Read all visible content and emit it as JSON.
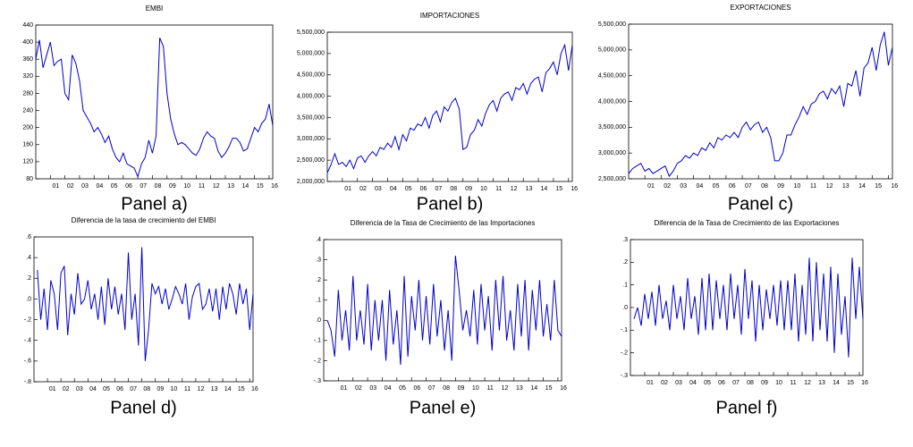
{
  "chart_data": [
    {
      "type": "line",
      "title": "EMBI",
      "caption": "Panel a)",
      "color": "#0000cc",
      "categories": [
        null,
        null,
        null,
        null,
        "01",
        null,
        null,
        null,
        "02",
        null,
        null,
        null,
        "03",
        null,
        null,
        null,
        "04",
        null,
        null,
        null,
        "05",
        null,
        null,
        null,
        "06",
        null,
        null,
        null,
        "07",
        null,
        null,
        null,
        "08",
        null,
        null,
        null,
        "09",
        null,
        null,
        null,
        "10",
        null,
        null,
        null,
        "11",
        null,
        null,
        null,
        "12",
        null,
        null,
        null,
        "13",
        null,
        null,
        null,
        "14",
        null,
        null,
        null,
        "15",
        null,
        null,
        null,
        "16",
        null
      ],
      "values": [
        360,
        405,
        340,
        370,
        400,
        345,
        355,
        360,
        280,
        265,
        370,
        350,
        310,
        240,
        225,
        210,
        190,
        200,
        185,
        165,
        180,
        150,
        130,
        120,
        140,
        115,
        110,
        105,
        85,
        115,
        130,
        170,
        140,
        180,
        410,
        390,
        280,
        220,
        185,
        160,
        165,
        160,
        150,
        140,
        135,
        150,
        175,
        190,
        180,
        175,
        145,
        130,
        140,
        155,
        175,
        175,
        165,
        145,
        150,
        175,
        200,
        190,
        210,
        220,
        255,
        205
      ],
      "ylim": [
        80,
        440
      ],
      "yticks": [
        80,
        120,
        160,
        200,
        240,
        280,
        320,
        360,
        400,
        440
      ]
    },
    {
      "type": "line",
      "title": "IMPORTACIONES",
      "caption": "Panel b)",
      "color": "#0000cc",
      "categories": [
        null,
        null,
        null,
        null,
        "01",
        null,
        null,
        null,
        "02",
        null,
        null,
        null,
        "03",
        null,
        null,
        null,
        "04",
        null,
        null,
        null,
        "05",
        null,
        null,
        null,
        "06",
        null,
        null,
        null,
        "07",
        null,
        null,
        null,
        "08",
        null,
        null,
        null,
        "09",
        null,
        null,
        null,
        "10",
        null,
        null,
        null,
        "11",
        null,
        null,
        null,
        "12",
        null,
        null,
        null,
        "13",
        null,
        null,
        null,
        "14",
        null,
        null,
        null,
        "15",
        null,
        null,
        null,
        "16",
        null
      ],
      "values": [
        2200000,
        2400000,
        2650000,
        2400000,
        2450000,
        2350000,
        2500000,
        2300000,
        2550000,
        2600000,
        2450000,
        2600000,
        2700000,
        2600000,
        2800000,
        2750000,
        2900000,
        2800000,
        3050000,
        2750000,
        3100000,
        2950000,
        3250000,
        3200000,
        3350000,
        3300000,
        3500000,
        3250000,
        3550000,
        3650000,
        3400000,
        3750000,
        3650000,
        3850000,
        3950000,
        3700000,
        2750000,
        2800000,
        3100000,
        3200000,
        3450000,
        3300000,
        3600000,
        3800000,
        3900000,
        3650000,
        3950000,
        4050000,
        4100000,
        3900000,
        4200000,
        4150000,
        4300000,
        4050000,
        4300000,
        4400000,
        4450000,
        4100000,
        4550000,
        4650000,
        4800000,
        4500000,
        5000000,
        5200000,
        4600000,
        5200000
      ],
      "ylim": [
        2000000,
        5500000
      ],
      "yticks": [
        {
          "value": 2000000,
          "label": "2,000,000"
        },
        {
          "value": 2500000,
          "label": "2,500,000"
        },
        {
          "value": 3000000,
          "label": "3,000,000"
        },
        {
          "value": 3500000,
          "label": "3,500,000"
        },
        {
          "value": 4000000,
          "label": "4,000,000"
        },
        {
          "value": 4500000,
          "label": "4,500,000"
        },
        {
          "value": 5000000,
          "label": "5,000,000"
        },
        {
          "value": 5500000,
          "label": "5,500,000"
        }
      ]
    },
    {
      "type": "line",
      "title": "EXPORTACIONES",
      "caption": "Panel c)",
      "color": "#0000cc",
      "categories": [
        null,
        null,
        null,
        null,
        "01",
        null,
        null,
        null,
        "02",
        null,
        null,
        null,
        "03",
        null,
        null,
        null,
        "04",
        null,
        null,
        null,
        "05",
        null,
        null,
        null,
        "06",
        null,
        null,
        null,
        "07",
        null,
        null,
        null,
        "08",
        null,
        null,
        null,
        "09",
        null,
        null,
        null,
        "10",
        null,
        null,
        null,
        "11",
        null,
        null,
        null,
        "12",
        null,
        null,
        null,
        "13",
        null,
        null,
        null,
        "14",
        null,
        null,
        null,
        "15",
        null,
        null,
        null,
        "16",
        null
      ],
      "values": [
        2600000,
        2700000,
        2750000,
        2800000,
        2650000,
        2700000,
        2600000,
        2650000,
        2700000,
        2750000,
        2550000,
        2650000,
        2800000,
        2850000,
        2950000,
        2900000,
        3000000,
        2950000,
        3100000,
        3050000,
        3200000,
        3100000,
        3300000,
        3250000,
        3350000,
        3300000,
        3400000,
        3300000,
        3500000,
        3600000,
        3450000,
        3550000,
        3600000,
        3400000,
        3500000,
        3300000,
        2850000,
        2850000,
        3000000,
        3350000,
        3350000,
        3550000,
        3700000,
        3900000,
        3750000,
        3950000,
        4000000,
        4150000,
        4200000,
        4050000,
        4250000,
        4150000,
        4300000,
        3900000,
        4350000,
        4300000,
        4600000,
        4100000,
        4650000,
        4750000,
        5050000,
        4600000,
        5100000,
        5350000,
        4700000,
        5050000
      ],
      "ylim": [
        2500000,
        5500000
      ],
      "yticks": [
        {
          "value": 2500000,
          "label": "2,500,000"
        },
        {
          "value": 3000000,
          "label": "3,000,000"
        },
        {
          "value": 3500000,
          "label": "3,500,000"
        },
        {
          "value": 4000000,
          "label": "4,000,000"
        },
        {
          "value": 4500000,
          "label": "4,500,000"
        },
        {
          "value": 5000000,
          "label": "5,000,000"
        },
        {
          "value": 5500000,
          "label": "5,500,000"
        }
      ]
    },
    {
      "type": "line",
      "title": "Diferencia de la tasa de crecimiento del EMBI",
      "caption": "Panel d)",
      "color": "#0000cc",
      "categories": [
        null,
        null,
        null,
        null,
        "01",
        null,
        null,
        null,
        "02",
        null,
        null,
        null,
        "03",
        null,
        null,
        null,
        "04",
        null,
        null,
        null,
        "05",
        null,
        null,
        null,
        "06",
        null,
        null,
        null,
        "07",
        null,
        null,
        null,
        "08",
        null,
        null,
        null,
        "09",
        null,
        null,
        null,
        "10",
        null,
        null,
        null,
        "11",
        null,
        null,
        null,
        "12",
        null,
        null,
        null,
        "13",
        null,
        null,
        null,
        "14",
        null,
        null,
        null,
        "15",
        null,
        null,
        null,
        "16",
        null
      ],
      "values": [
        null,
        0.28,
        -0.2,
        0.1,
        -0.3,
        0.18,
        0.05,
        -0.3,
        0.25,
        0.32,
        -0.35,
        0.05,
        -0.15,
        0.25,
        -0.05,
        0.0,
        0.18,
        -0.1,
        0.05,
        -0.2,
        0.12,
        -0.25,
        0.2,
        -0.1,
        0.12,
        -0.15,
        0.05,
        -0.3,
        0.45,
        -0.2,
        0.05,
        -0.45,
        0.5,
        -0.6,
        -0.3,
        0.15,
        0.05,
        0.12,
        -0.05,
        0.1,
        -0.1,
        0.0,
        0.12,
        0.05,
        -0.05,
        0.15,
        -0.2,
        0.02,
        0.12,
        0.15,
        -0.1,
        -0.05,
        0.1,
        -0.12,
        0.1,
        -0.2,
        0.12,
        -0.1,
        0.15,
        0.05,
        -0.15,
        0.15,
        -0.05,
        0.1,
        -0.3,
        0.05
      ],
      "ylim": [
        -0.8,
        0.6
      ],
      "yticks": [
        {
          "value": -0.8,
          "label": "-.8"
        },
        {
          "value": -0.6,
          "label": "-.6"
        },
        {
          "value": -0.4,
          "label": "-.4"
        },
        {
          "value": -0.2,
          "label": "-.2"
        },
        {
          "value": 0,
          "label": ".0"
        },
        {
          "value": 0.2,
          "label": ".2"
        },
        {
          "value": 0.4,
          "label": ".4"
        },
        {
          "value": 0.6,
          "label": ".6"
        }
      ]
    },
    {
      "type": "line",
      "title": "Diferencia de la Tasa de Crecimiento de las Importaciones",
      "caption": "Panel e)",
      "color": "#0000cc",
      "categories": [
        null,
        null,
        null,
        null,
        "01",
        null,
        null,
        null,
        "02",
        null,
        null,
        null,
        "03",
        null,
        null,
        null,
        "04",
        null,
        null,
        null,
        "05",
        null,
        null,
        null,
        "06",
        null,
        null,
        null,
        "07",
        null,
        null,
        null,
        "08",
        null,
        null,
        null,
        "09",
        null,
        null,
        null,
        "10",
        null,
        null,
        null,
        "11",
        null,
        null,
        null,
        "12",
        null,
        null,
        null,
        "13",
        null,
        null,
        null,
        "14",
        null,
        null,
        null,
        "15",
        null,
        null,
        null,
        "16",
        null
      ],
      "values": [
        null,
        0.0,
        -0.05,
        -0.18,
        0.15,
        -0.1,
        0.05,
        -0.15,
        0.22,
        -0.1,
        0.05,
        -0.12,
        0.18,
        -0.15,
        0.1,
        -0.1,
        0.1,
        -0.2,
        0.15,
        -0.12,
        0.05,
        -0.22,
        0.22,
        -0.18,
        0.12,
        -0.05,
        0.2,
        -0.1,
        0.12,
        -0.12,
        0.18,
        -0.08,
        0.1,
        -0.15,
        0.05,
        -0.2,
        0.32,
        0.15,
        -0.05,
        0.05,
        -0.08,
        0.15,
        -0.12,
        0.18,
        -0.05,
        0.12,
        -0.15,
        0.2,
        -0.05,
        0.22,
        -0.1,
        0.05,
        -0.15,
        0.18,
        -0.08,
        0.2,
        -0.15,
        0.15,
        -0.05,
        0.2,
        -0.08,
        0.08,
        -0.1,
        0.2,
        -0.05,
        -0.08
      ],
      "ylim": [
        -0.3,
        0.4
      ],
      "yticks": [
        {
          "value": -0.3,
          "label": "-.3"
        },
        {
          "value": -0.2,
          "label": "-.2"
        },
        {
          "value": -0.1,
          "label": "-.1"
        },
        {
          "value": 0,
          "label": ".0"
        },
        {
          "value": 0.1,
          "label": ".1"
        },
        {
          "value": 0.2,
          "label": ".2"
        },
        {
          "value": 0.3,
          "label": ".3"
        },
        {
          "value": 0.4,
          "label": ".4"
        }
      ]
    },
    {
      "type": "line",
      "title": "Diferencia de la Tasa de Crecimiento de las Exportaciones",
      "caption": "Panel f)",
      "color": "#0000cc",
      "categories": [
        null,
        null,
        null,
        null,
        "01",
        null,
        null,
        null,
        "02",
        null,
        null,
        null,
        "03",
        null,
        null,
        null,
        "04",
        null,
        null,
        null,
        "05",
        null,
        null,
        null,
        "06",
        null,
        null,
        null,
        "07",
        null,
        null,
        null,
        "08",
        null,
        null,
        null,
        "09",
        null,
        null,
        null,
        "10",
        null,
        null,
        null,
        "11",
        null,
        null,
        null,
        "12",
        null,
        null,
        null,
        "13",
        null,
        null,
        null,
        "14",
        null,
        null,
        null,
        "15",
        null,
        null,
        null,
        "16",
        null
      ],
      "values": [
        null,
        -0.05,
        0.0,
        -0.08,
        0.06,
        -0.05,
        0.07,
        -0.08,
        0.1,
        -0.05,
        0.03,
        -0.1,
        0.1,
        -0.05,
        0.05,
        -0.1,
        0.13,
        -0.05,
        0.05,
        -0.12,
        0.13,
        -0.1,
        0.15,
        -0.1,
        0.12,
        -0.05,
        0.1,
        -0.1,
        0.15,
        -0.05,
        0.1,
        -0.12,
        0.17,
        -0.05,
        0.12,
        -0.15,
        0.1,
        -0.1,
        0.08,
        -0.05,
        0.1,
        -0.08,
        0.12,
        -0.1,
        0.12,
        -0.1,
        0.15,
        -0.15,
        0.1,
        -0.12,
        0.22,
        -0.15,
        0.2,
        -0.1,
        0.15,
        -0.15,
        0.18,
        -0.2,
        0.15,
        -0.12,
        0.05,
        -0.22,
        0.22,
        -0.05,
        0.18,
        -0.05
      ],
      "ylim": [
        -0.3,
        0.3
      ],
      "yticks": [
        {
          "value": -0.3,
          "label": "-.3"
        },
        {
          "value": -0.2,
          "label": "-.2"
        },
        {
          "value": -0.1,
          "label": "-.1"
        },
        {
          "value": 0,
          "label": ".0"
        },
        {
          "value": 0.1,
          "label": ".1"
        },
        {
          "value": 0.2,
          "label": ".2"
        },
        {
          "value": 0.3,
          "label": ".3"
        }
      ]
    }
  ]
}
